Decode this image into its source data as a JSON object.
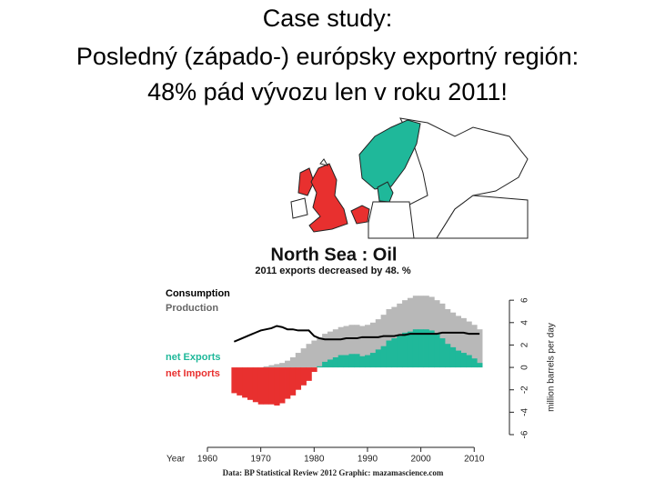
{
  "slide": {
    "title_lines": [
      "Case study:",
      "Posledný (západo-) európsky exportný región:",
      "48% pád vývozu len v roku 2011!"
    ]
  },
  "chart_data": {
    "type": "area",
    "title": "North Sea : Oil",
    "subtitle": "2011 exports decreased by 48. %",
    "x_label": "Year",
    "y_label": "million barrels per day",
    "source": "Data: BP Statistical Review 2012   Graphic: mazamascience.com",
    "x": [
      1965,
      1966,
      1967,
      1968,
      1969,
      1970,
      1971,
      1972,
      1973,
      1974,
      1975,
      1976,
      1977,
      1978,
      1979,
      1980,
      1981,
      1982,
      1983,
      1984,
      1985,
      1986,
      1987,
      1988,
      1989,
      1990,
      1991,
      1992,
      1993,
      1994,
      1995,
      1996,
      1997,
      1998,
      1999,
      2000,
      2001,
      2002,
      2003,
      2004,
      2005,
      2006,
      2007,
      2008,
      2009,
      2010,
      2011
    ],
    "series": [
      {
        "name": "Consumption",
        "color": "#000000",
        "values": [
          2.3,
          2.5,
          2.7,
          2.9,
          3.1,
          3.3,
          3.4,
          3.5,
          3.7,
          3.6,
          3.4,
          3.4,
          3.3,
          3.3,
          3.3,
          2.8,
          2.6,
          2.5,
          2.5,
          2.5,
          2.5,
          2.6,
          2.6,
          2.6,
          2.7,
          2.7,
          2.7,
          2.7,
          2.8,
          2.8,
          2.8,
          2.9,
          2.9,
          3.0,
          3.0,
          3.0,
          3.0,
          3.0,
          3.0,
          3.1,
          3.1,
          3.1,
          3.1,
          3.1,
          3.0,
          3.0,
          3.0
        ]
      },
      {
        "name": "Production",
        "color": "#b8b8b8",
        "values": [
          0.0,
          0.0,
          0.0,
          0.0,
          0.0,
          0.0,
          0.1,
          0.2,
          0.3,
          0.4,
          0.6,
          0.9,
          1.3,
          1.7,
          2.1,
          2.4,
          2.7,
          3.0,
          3.2,
          3.4,
          3.6,
          3.7,
          3.8,
          3.8,
          3.7,
          3.8,
          4.0,
          4.3,
          4.7,
          5.2,
          5.4,
          5.7,
          6.0,
          6.2,
          6.4,
          6.4,
          6.4,
          6.3,
          6.0,
          5.7,
          5.2,
          4.9,
          4.6,
          4.4,
          4.1,
          3.8,
          3.4
        ]
      },
      {
        "name": "net Exports",
        "color": "#1fb89a",
        "values": [
          null,
          null,
          null,
          null,
          null,
          null,
          null,
          null,
          null,
          null,
          null,
          null,
          null,
          null,
          null,
          null,
          0.1,
          0.5,
          0.7,
          0.9,
          1.1,
          1.1,
          1.2,
          1.2,
          1.0,
          1.1,
          1.3,
          1.6,
          1.9,
          2.4,
          2.6,
          2.8,
          3.1,
          3.2,
          3.4,
          3.4,
          3.4,
          3.3,
          3.0,
          2.6,
          2.1,
          1.8,
          1.5,
          1.3,
          1.1,
          0.8,
          0.4
        ]
      },
      {
        "name": "net Imports",
        "color": "#e8302f",
        "values": [
          -2.3,
          -2.5,
          -2.7,
          -2.9,
          -3.1,
          -3.3,
          -3.3,
          -3.3,
          -3.4,
          -3.2,
          -2.8,
          -2.5,
          -2.0,
          -1.6,
          -1.2,
          -0.4,
          null,
          null,
          null,
          null,
          null,
          null,
          null,
          null,
          null,
          null,
          null,
          null,
          null,
          null,
          null,
          null,
          null,
          null,
          null,
          null,
          null,
          null,
          null,
          null,
          null,
          null,
          null,
          null,
          null,
          null,
          null
        ]
      }
    ],
    "xlim": [
      1960,
      2012
    ],
    "xticks": [
      1960,
      1970,
      1980,
      1990,
      2000,
      2010
    ],
    "ylim": [
      -6,
      6.5
    ],
    "yticks": [
      -6,
      -4,
      -2,
      0,
      2,
      4,
      6
    ]
  }
}
